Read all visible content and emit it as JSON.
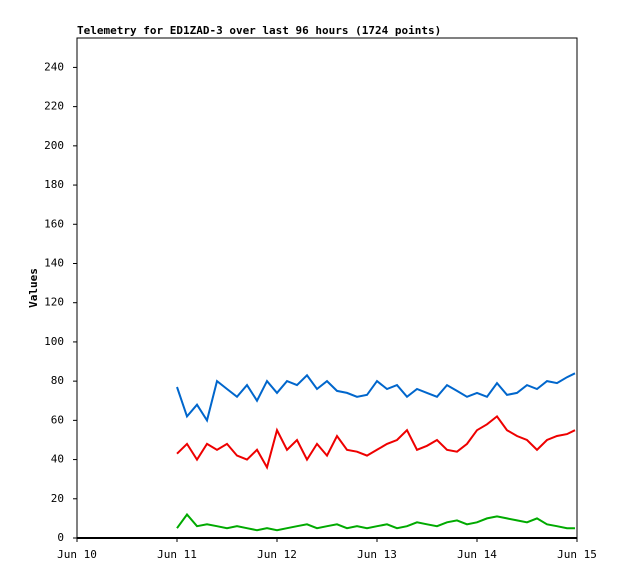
{
  "chart_data": {
    "type": "line",
    "title": "Telemetry for ED1ZAD-3 over last 96 hours (1724 points)",
    "y_label": "Values",
    "x": [
      11.0,
      11.1,
      11.2,
      11.3,
      11.4,
      11.5,
      11.6,
      11.7,
      11.8,
      11.9,
      12.0,
      12.1,
      12.2,
      12.3,
      12.4,
      12.5,
      12.6,
      12.7,
      12.8,
      12.9,
      13.0,
      13.1,
      13.2,
      13.3,
      13.4,
      13.5,
      13.6,
      13.7,
      13.8,
      13.9,
      14.0,
      14.1,
      14.2,
      14.3,
      14.4,
      14.5,
      14.6,
      14.7,
      14.8,
      14.9,
      14.98
    ],
    "series": [
      {
        "color": "#0066cc",
        "values": [
          77,
          62,
          68,
          60,
          80,
          76,
          72,
          78,
          70,
          80,
          74,
          80,
          78,
          83,
          76,
          80,
          75,
          74,
          72,
          73,
          80,
          76,
          78,
          72,
          76,
          74,
          72,
          78,
          75,
          72,
          74,
          72,
          79,
          73,
          74,
          78,
          76,
          80,
          79,
          82,
          84
        ]
      },
      {
        "color": "#ee0000",
        "values": [
          43,
          48,
          40,
          48,
          45,
          48,
          42,
          40,
          45,
          36,
          55,
          45,
          50,
          40,
          48,
          42,
          52,
          45,
          44,
          42,
          45,
          48,
          50,
          55,
          45,
          47,
          50,
          45,
          44,
          48,
          55,
          58,
          62,
          55,
          52,
          50,
          45,
          50,
          52,
          53,
          55
        ]
      },
      {
        "color": "#00aa00",
        "values": [
          5,
          12,
          6,
          7,
          6,
          5,
          6,
          5,
          4,
          5,
          4,
          5,
          6,
          7,
          5,
          6,
          7,
          5,
          6,
          5,
          6,
          7,
          5,
          6,
          8,
          7,
          6,
          8,
          9,
          7,
          8,
          10,
          11,
          10,
          9,
          8,
          10,
          7,
          6,
          5,
          5
        ]
      }
    ],
    "xlim": [
      10,
      15
    ],
    "xticks": [
      {
        "value": 10,
        "label": "Jun 10"
      },
      {
        "value": 11,
        "label": "Jun 11"
      },
      {
        "value": 12,
        "label": "Jun 12"
      },
      {
        "value": 13,
        "label": "Jun 13"
      },
      {
        "value": 14,
        "label": "Jun 14"
      },
      {
        "value": 15,
        "label": "Jun 15"
      }
    ],
    "ylim": [
      0,
      255
    ],
    "yticks": [
      0,
      20,
      40,
      60,
      80,
      100,
      120,
      140,
      160,
      180,
      200,
      220,
      240
    ]
  }
}
